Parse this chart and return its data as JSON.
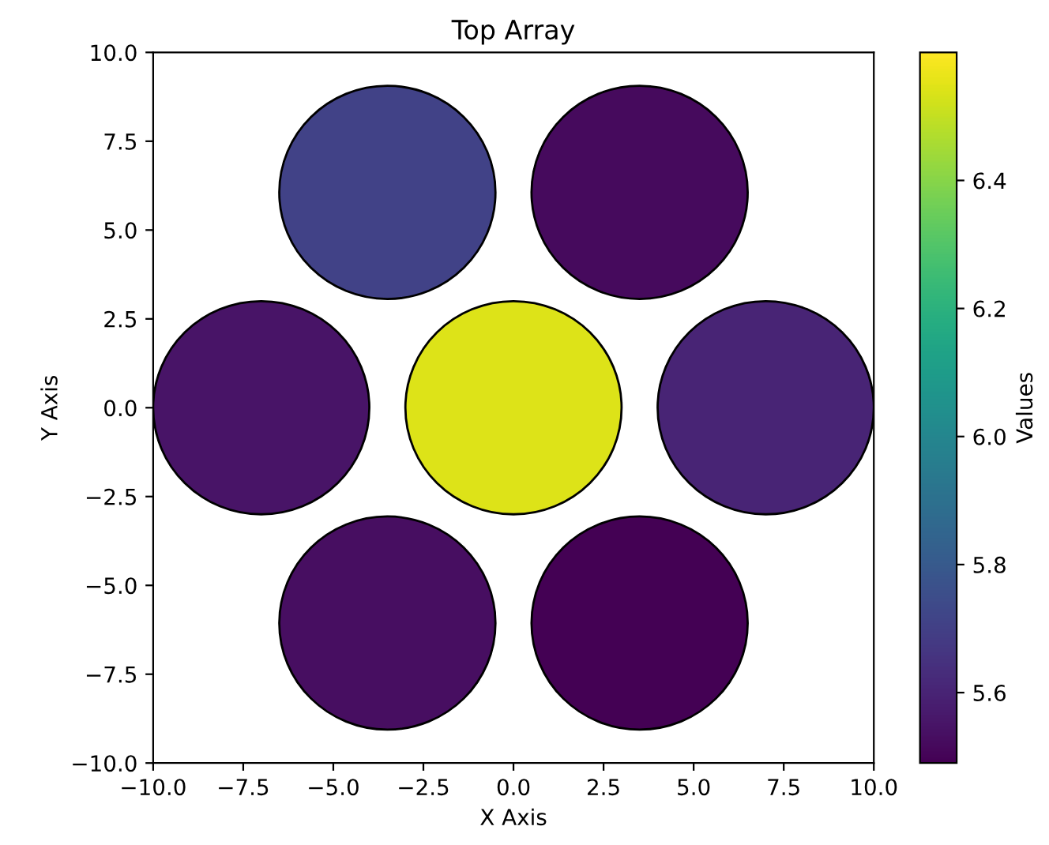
{
  "chart_data": {
    "type": "bubble",
    "title": "Top Array",
    "xlabel": "X Axis",
    "ylabel": "Y Axis",
    "clabel": "Values",
    "x": [
      -3.5,
      3.5,
      -7,
      0,
      7,
      -3.5,
      3.5
    ],
    "values": [
      6.06,
      6.06,
      0,
      0,
      0,
      -6.06,
      -6.06
    ],
    "sizes": [
      1,
      1,
      1,
      1,
      1,
      1,
      1
    ],
    "cvalues": [
      5.71,
      5.52,
      5.55,
      6.54,
      5.6,
      5.53,
      5.49
    ],
    "clim": [
      5.49,
      6.6
    ],
    "cticks": [
      {
        "value": 5.6,
        "label": "5.6"
      },
      {
        "value": 5.8,
        "label": "5.8"
      },
      {
        "value": 6,
        "label": "6.0"
      },
      {
        "value": 6.2,
        "label": "6.2"
      },
      {
        "value": 6.4,
        "label": "6.4"
      }
    ],
    "xlim": [
      -10,
      10
    ],
    "ylim": [
      -10,
      10
    ],
    "xticks": [
      {
        "value": -10,
        "label": "−10.0"
      },
      {
        "value": -7.5,
        "label": "−7.5"
      },
      {
        "value": -5,
        "label": "−5.0"
      },
      {
        "value": -2.5,
        "label": "−2.5"
      },
      {
        "value": 0,
        "label": "0.0"
      },
      {
        "value": 2.5,
        "label": "2.5"
      },
      {
        "value": 5,
        "label": "5.0"
      },
      {
        "value": 7.5,
        "label": "7.5"
      },
      {
        "value": 10,
        "label": "10.0"
      }
    ],
    "yticks": [
      {
        "value": -10,
        "label": "−10.0"
      },
      {
        "value": -7.5,
        "label": "−7.5"
      },
      {
        "value": -5,
        "label": "−5.0"
      },
      {
        "value": -2.5,
        "label": "−2.5"
      },
      {
        "value": 0,
        "label": "0.0"
      },
      {
        "value": 2.5,
        "label": "2.5"
      },
      {
        "value": 5,
        "label": "5.0"
      },
      {
        "value": 7.5,
        "label": "7.5"
      },
      {
        "value": 10,
        "label": "10.0"
      }
    ],
    "grid": false
  }
}
